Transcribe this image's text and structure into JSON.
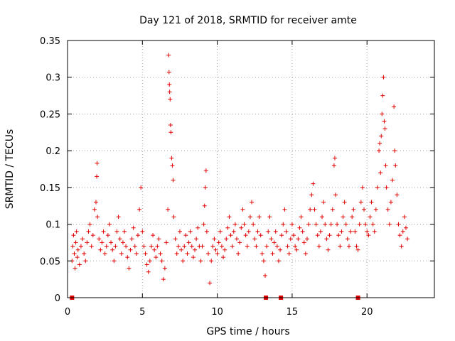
{
  "chart_data": {
    "type": "scatter",
    "title": "Day 121 of 2018, SRMTID for receiver amte",
    "xlabel": "GPS time / hours",
    "ylabel": "SRMTID / TECUs",
    "xlim": [
      0,
      24.5
    ],
    "ylim": [
      0,
      0.35
    ],
    "x_ticks": [
      0,
      5,
      10,
      15,
      20
    ],
    "y_ticks": [
      0,
      0.05,
      0.1,
      0.15,
      0.2,
      0.25,
      0.3,
      0.35
    ],
    "x_tick_labels": [
      "0",
      "5",
      "10",
      "15",
      "20"
    ],
    "y_tick_labels": [
      "0",
      "0.05",
      "0.1",
      "0.15",
      "0.2",
      "0.25",
      "0.3",
      "0.35"
    ],
    "grid": true,
    "marker": "+",
    "color": "#e00000",
    "series": [
      {
        "name": "SRMTID",
        "points": [
          [
            0.3,
            0.05
          ],
          [
            0.35,
            0.07
          ],
          [
            0.4,
            0.085
          ],
          [
            0.45,
            0.06
          ],
          [
            0.5,
            0.04
          ],
          [
            0.55,
            0.075
          ],
          [
            0.6,
            0.09
          ],
          [
            0.65,
            0.055
          ],
          [
            0.7,
            0.065
          ],
          [
            0.8,
            0.045
          ],
          [
            0.9,
            0.07
          ],
          [
            1.0,
            0.08
          ],
          [
            1.1,
            0.06
          ],
          [
            1.2,
            0.05
          ],
          [
            1.3,
            0.075
          ],
          [
            1.4,
            0.09
          ],
          [
            1.5,
            0.1
          ],
          [
            1.6,
            0.07
          ],
          [
            1.7,
            0.085
          ],
          [
            1.8,
            0.12
          ],
          [
            1.9,
            0.13
          ],
          [
            1.95,
            0.165
          ],
          [
            1.97,
            0.183
          ],
          [
            2.0,
            0.11
          ],
          [
            2.1,
            0.08
          ],
          [
            2.2,
            0.065
          ],
          [
            2.3,
            0.075
          ],
          [
            2.4,
            0.09
          ],
          [
            2.5,
            0.06
          ],
          [
            2.6,
            0.07
          ],
          [
            2.7,
            0.085
          ],
          [
            2.8,
            0.1
          ],
          [
            2.9,
            0.075
          ],
          [
            3.0,
            0.065
          ],
          [
            3.1,
            0.05
          ],
          [
            3.2,
            0.07
          ],
          [
            3.3,
            0.09
          ],
          [
            3.4,
            0.11
          ],
          [
            3.5,
            0.08
          ],
          [
            3.6,
            0.06
          ],
          [
            3.7,
            0.075
          ],
          [
            3.8,
            0.09
          ],
          [
            3.9,
            0.07
          ],
          [
            4.0,
            0.055
          ],
          [
            4.1,
            0.04
          ],
          [
            4.2,
            0.065
          ],
          [
            4.3,
            0.08
          ],
          [
            4.4,
            0.095
          ],
          [
            4.5,
            0.07
          ],
          [
            4.6,
            0.06
          ],
          [
            4.7,
            0.085
          ],
          [
            4.8,
            0.12
          ],
          [
            4.9,
            0.15
          ],
          [
            5.0,
            0.09
          ],
          [
            5.1,
            0.07
          ],
          [
            5.2,
            0.06
          ],
          [
            5.3,
            0.045
          ],
          [
            5.4,
            0.035
          ],
          [
            5.5,
            0.05
          ],
          [
            5.6,
            0.07
          ],
          [
            5.7,
            0.085
          ],
          [
            5.8,
            0.065
          ],
          [
            5.9,
            0.055
          ],
          [
            6.0,
            0.07
          ],
          [
            6.1,
            0.08
          ],
          [
            6.2,
            0.06
          ],
          [
            6.3,
            0.05
          ],
          [
            6.4,
            0.025
          ],
          [
            6.5,
            0.04
          ],
          [
            6.6,
            0.075
          ],
          [
            6.7,
            0.12
          ],
          [
            6.75,
            0.33
          ],
          [
            6.78,
            0.307
          ],
          [
            6.8,
            0.29
          ],
          [
            6.82,
            0.28
          ],
          [
            6.85,
            0.27
          ],
          [
            6.88,
            0.235
          ],
          [
            6.9,
            0.225
          ],
          [
            6.95,
            0.19
          ],
          [
            7.0,
            0.18
          ],
          [
            7.05,
            0.16
          ],
          [
            7.1,
            0.11
          ],
          [
            7.2,
            0.08
          ],
          [
            7.3,
            0.06
          ],
          [
            7.4,
            0.07
          ],
          [
            7.5,
            0.09
          ],
          [
            7.6,
            0.065
          ],
          [
            7.7,
            0.05
          ],
          [
            7.8,
            0.07
          ],
          [
            7.9,
            0.085
          ],
          [
            8.0,
            0.06
          ],
          [
            8.1,
            0.075
          ],
          [
            8.2,
            0.09
          ],
          [
            8.3,
            0.07
          ],
          [
            8.4,
            0.055
          ],
          [
            8.5,
            0.065
          ],
          [
            8.6,
            0.08
          ],
          [
            8.7,
            0.095
          ],
          [
            8.8,
            0.07
          ],
          [
            8.9,
            0.05
          ],
          [
            9.0,
            0.07
          ],
          [
            9.1,
            0.1
          ],
          [
            9.15,
            0.125
          ],
          [
            9.2,
            0.15
          ],
          [
            9.25,
            0.173
          ],
          [
            9.3,
            0.09
          ],
          [
            9.4,
            0.06
          ],
          [
            9.5,
            0.02
          ],
          [
            9.6,
            0.05
          ],
          [
            9.7,
            0.07
          ],
          [
            9.8,
            0.08
          ],
          [
            9.9,
            0.065
          ],
          [
            10.0,
            0.06
          ],
          [
            10.1,
            0.075
          ],
          [
            10.2,
            0.09
          ],
          [
            10.3,
            0.07
          ],
          [
            10.4,
            0.055
          ],
          [
            10.5,
            0.065
          ],
          [
            10.6,
            0.08
          ],
          [
            10.7,
            0.095
          ],
          [
            10.8,
            0.11
          ],
          [
            10.9,
            0.085
          ],
          [
            11.0,
            0.07
          ],
          [
            11.1,
            0.09
          ],
          [
            11.2,
            0.1
          ],
          [
            11.3,
            0.08
          ],
          [
            11.4,
            0.06
          ],
          [
            11.5,
            0.075
          ],
          [
            11.6,
            0.095
          ],
          [
            11.7,
            0.12
          ],
          [
            11.8,
            0.1
          ],
          [
            11.9,
            0.085
          ],
          [
            12.0,
            0.07
          ],
          [
            12.1,
            0.09
          ],
          [
            12.2,
            0.11
          ],
          [
            12.3,
            0.13
          ],
          [
            12.4,
            0.1
          ],
          [
            12.5,
            0.08
          ],
          [
            12.6,
            0.07
          ],
          [
            12.7,
            0.09
          ],
          [
            12.8,
            0.11
          ],
          [
            12.9,
            0.085
          ],
          [
            13.0,
            0.06
          ],
          [
            13.1,
            0.05
          ],
          [
            13.2,
            0.03
          ],
          [
            13.3,
            0.07
          ],
          [
            13.4,
            0.09
          ],
          [
            13.5,
            0.11
          ],
          [
            13.6,
            0.08
          ],
          [
            13.7,
            0.06
          ],
          [
            13.8,
            0.075
          ],
          [
            13.9,
            0.09
          ],
          [
            14.0,
            0.07
          ],
          [
            14.1,
            0.05
          ],
          [
            14.2,
            0.065
          ],
          [
            14.3,
            0.085
          ],
          [
            14.4,
            0.1
          ],
          [
            14.5,
            0.12
          ],
          [
            14.6,
            0.09
          ],
          [
            14.7,
            0.07
          ],
          [
            14.8,
            0.06
          ],
          [
            14.9,
            0.08
          ],
          [
            15.0,
            0.1
          ],
          [
            15.1,
            0.085
          ],
          [
            15.2,
            0.07
          ],
          [
            15.3,
            0.065
          ],
          [
            15.4,
            0.08
          ],
          [
            15.5,
            0.095
          ],
          [
            15.6,
            0.11
          ],
          [
            15.7,
            0.09
          ],
          [
            15.8,
            0.075
          ],
          [
            15.9,
            0.06
          ],
          [
            16.0,
            0.08
          ],
          [
            16.1,
            0.1
          ],
          [
            16.2,
            0.12
          ],
          [
            16.3,
            0.14
          ],
          [
            16.4,
            0.155
          ],
          [
            16.5,
            0.12
          ],
          [
            16.6,
            0.1
          ],
          [
            16.7,
            0.085
          ],
          [
            16.8,
            0.07
          ],
          [
            16.9,
            0.09
          ],
          [
            17.0,
            0.11
          ],
          [
            17.1,
            0.13
          ],
          [
            17.2,
            0.1
          ],
          [
            17.3,
            0.08
          ],
          [
            17.4,
            0.065
          ],
          [
            17.5,
            0.085
          ],
          [
            17.6,
            0.1
          ],
          [
            17.7,
            0.12
          ],
          [
            17.8,
            0.18
          ],
          [
            17.85,
            0.19
          ],
          [
            17.9,
            0.14
          ],
          [
            18.0,
            0.1
          ],
          [
            18.1,
            0.085
          ],
          [
            18.2,
            0.07
          ],
          [
            18.3,
            0.09
          ],
          [
            18.4,
            0.11
          ],
          [
            18.5,
            0.13
          ],
          [
            18.6,
            0.1
          ],
          [
            18.7,
            0.08
          ],
          [
            18.8,
            0.07
          ],
          [
            18.9,
            0.09
          ],
          [
            19.0,
            0.11
          ],
          [
            19.1,
            0.12
          ],
          [
            19.2,
            0.09
          ],
          [
            19.3,
            0.07
          ],
          [
            19.4,
            0.065
          ],
          [
            19.5,
            0.1
          ],
          [
            19.6,
            0.13
          ],
          [
            19.7,
            0.15
          ],
          [
            19.8,
            0.12
          ],
          [
            19.9,
            0.1
          ],
          [
            20.0,
            0.09
          ],
          [
            20.1,
            0.085
          ],
          [
            20.2,
            0.11
          ],
          [
            20.3,
            0.13
          ],
          [
            20.4,
            0.1
          ],
          [
            20.5,
            0.09
          ],
          [
            20.6,
            0.12
          ],
          [
            20.7,
            0.15
          ],
          [
            20.8,
            0.2
          ],
          [
            20.85,
            0.21
          ],
          [
            20.9,
            0.17
          ],
          [
            20.95,
            0.22
          ],
          [
            21.0,
            0.25
          ],
          [
            21.05,
            0.275
          ],
          [
            21.1,
            0.3
          ],
          [
            21.15,
            0.24
          ],
          [
            21.2,
            0.23
          ],
          [
            21.25,
            0.18
          ],
          [
            21.3,
            0.15
          ],
          [
            21.4,
            0.12
          ],
          [
            21.5,
            0.1
          ],
          [
            21.6,
            0.13
          ],
          [
            21.7,
            0.16
          ],
          [
            21.8,
            0.26
          ],
          [
            21.85,
            0.2
          ],
          [
            21.9,
            0.18
          ],
          [
            22.0,
            0.14
          ],
          [
            22.1,
            0.1
          ],
          [
            22.2,
            0.085
          ],
          [
            22.3,
            0.07
          ],
          [
            22.4,
            0.09
          ],
          [
            22.5,
            0.11
          ],
          [
            22.6,
            0.095
          ],
          [
            22.7,
            0.08
          ]
        ]
      }
    ],
    "gap_markers_x": [
      0.3,
      13.25,
      14.25,
      19.4
    ]
  }
}
